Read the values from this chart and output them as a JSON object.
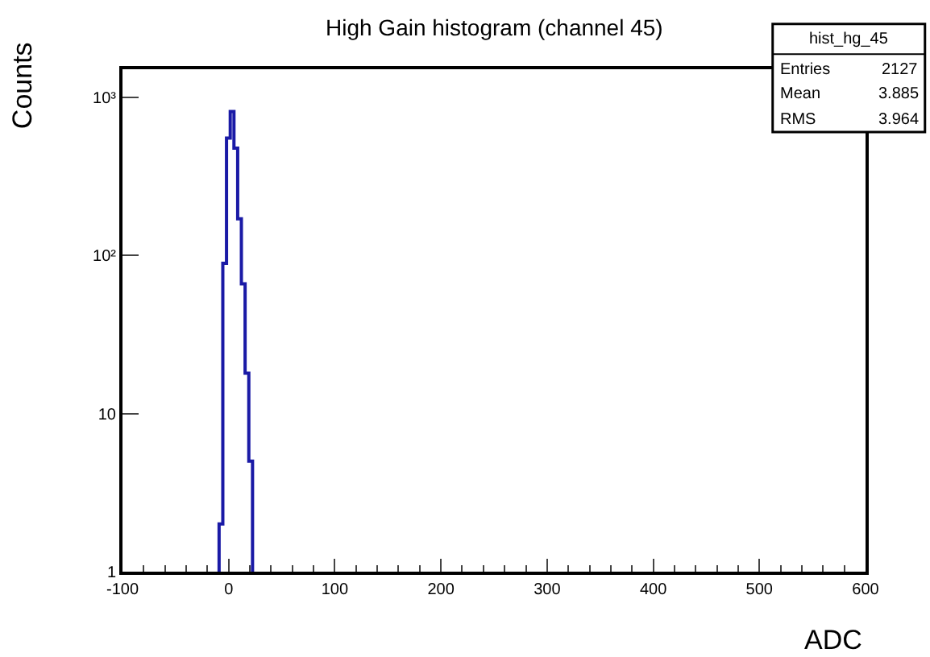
{
  "chart_data": {
    "type": "histogram",
    "title": "High Gain histogram (channel 45)",
    "xlabel": "ADC",
    "ylabel": "Counts",
    "bins": [
      -9,
      -5.5,
      -2,
      1.5,
      5,
      8.5,
      12,
      15.5,
      19,
      22.5
    ],
    "values": [
      2,
      89,
      550,
      810,
      475,
      170,
      66,
      18,
      5
    ],
    "color": "#1a1aa6",
    "log": true,
    "xlim": [
      -100,
      600
    ],
    "xticks": [
      -100,
      0,
      100,
      200,
      300,
      400,
      500,
      600
    ],
    "ylim": [
      1,
      1500
    ],
    "yticks": [
      {
        "value": 1,
        "label": "1"
      },
      {
        "value": 10,
        "label": "10"
      },
      {
        "value": 100,
        "label": "10²"
      },
      {
        "value": 1000,
        "label": "10³"
      }
    ],
    "annotations": [
      "hist_hg_45",
      "Entries",
      "2127",
      "Mean",
      "3.885",
      "RMS",
      "3.964"
    ]
  }
}
